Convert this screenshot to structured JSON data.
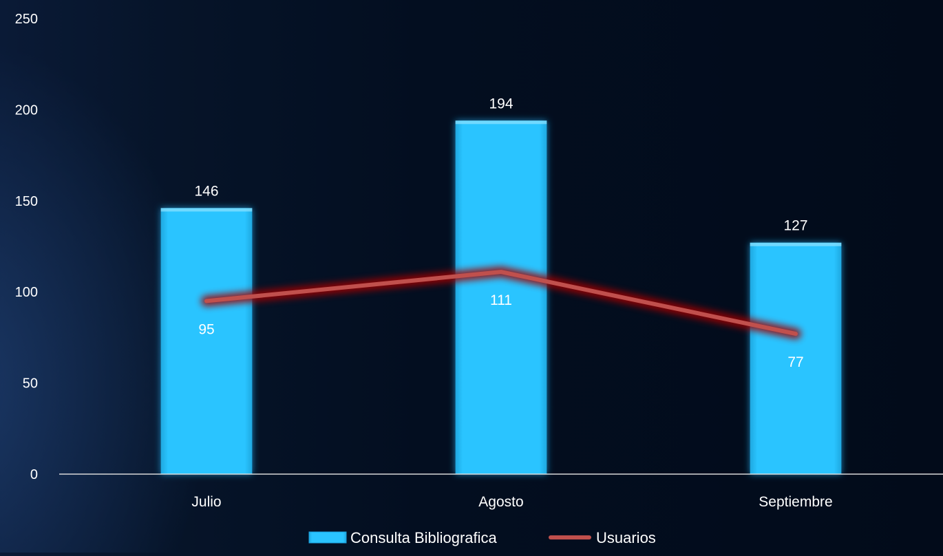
{
  "chart_data": {
    "type": "bar",
    "categories": [
      "Julio",
      "Agosto",
      "Septiembre"
    ],
    "series": [
      {
        "name": "Consulta Bibliografica",
        "type": "bar",
        "values": [
          146,
          194,
          127
        ],
        "color": "#29c0fb"
      },
      {
        "name": "Usuarios",
        "type": "line",
        "values": [
          95,
          111,
          77
        ],
        "color": "#c0504d"
      }
    ],
    "y_ticks": [
      0,
      50,
      100,
      150,
      200,
      250
    ],
    "ylim": [
      0,
      250
    ],
    "grid": false,
    "legend_position": "bottom"
  }
}
